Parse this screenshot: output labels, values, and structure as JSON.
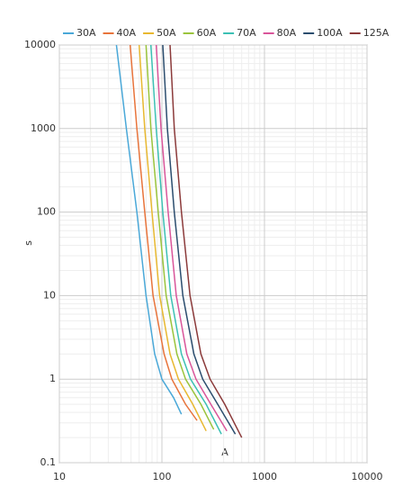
{
  "chart_data": {
    "type": "line",
    "xlabel": "A",
    "ylabel": "s",
    "log_x": true,
    "log_y": true,
    "grid": true,
    "legend": "top",
    "xlim": [
      10,
      10000
    ],
    "ylim": [
      0.1,
      10000
    ],
    "xticks": [
      10,
      100,
      1000,
      10000
    ],
    "yticks": [
      0.1,
      1,
      10,
      100,
      1000,
      10000
    ],
    "series": [
      {
        "name": "30A",
        "color": "#4aa8d8",
        "x": [
          36,
          45,
          57,
          70,
          85,
          100,
          130,
          155
        ],
        "values": [
          10000,
          1000,
          100,
          10,
          2,
          1,
          0.6,
          0.38
        ]
      },
      {
        "name": "40A",
        "color": "#e8743b",
        "x": [
          49,
          57,
          68,
          82,
          105,
          125,
          170,
          220
        ],
        "values": [
          10000,
          1000,
          100,
          10,
          2,
          1,
          0.5,
          0.32
        ]
      },
      {
        "name": "50A",
        "color": "#e8b830",
        "x": [
          60,
          68,
          80,
          95,
          120,
          145,
          200,
          270
        ],
        "values": [
          10000,
          1000,
          100,
          10,
          2,
          1,
          0.5,
          0.24
        ]
      },
      {
        "name": "60A",
        "color": "#9ac43c",
        "x": [
          70,
          78,
          92,
          110,
          140,
          170,
          240,
          320
        ],
        "values": [
          10000,
          1000,
          100,
          10,
          2,
          1,
          0.5,
          0.25
        ]
      },
      {
        "name": "70A",
        "color": "#3cc0b4",
        "x": [
          78,
          88,
          102,
          122,
          155,
          190,
          270,
          380
        ],
        "values": [
          10000,
          1000,
          100,
          10,
          2,
          1,
          0.5,
          0.22
        ]
      },
      {
        "name": "80A",
        "color": "#d9559a",
        "x": [
          88,
          98,
          115,
          138,
          175,
          215,
          300,
          430
        ],
        "values": [
          10000,
          1000,
          100,
          10,
          2,
          1,
          0.5,
          0.24
        ]
      },
      {
        "name": "100A",
        "color": "#2b4d6e",
        "x": [
          102,
          113,
          132,
          160,
          205,
          250,
          350,
          520
        ],
        "values": [
          10000,
          1000,
          100,
          10,
          2,
          1,
          0.5,
          0.22
        ]
      },
      {
        "name": "125A",
        "color": "#8b3a3a",
        "x": [
          120,
          132,
          155,
          188,
          240,
          295,
          410,
          600
        ],
        "values": [
          10000,
          1000,
          100,
          10,
          2,
          1,
          0.5,
          0.2
        ]
      }
    ]
  }
}
